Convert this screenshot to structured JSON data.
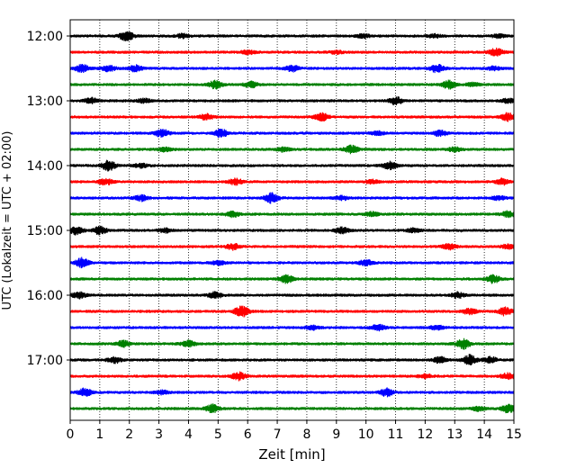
{
  "chart_data": {
    "type": "line",
    "title": "",
    "xlabel": "Zeit  [min]",
    "ylabel": "UTC (Lokalzeit = UTC + 02:00)",
    "xlim": [
      0,
      15
    ],
    "x_ticks": [
      "0",
      "1",
      "2",
      "3",
      "4",
      "5",
      "6",
      "7",
      "8",
      "9",
      "10",
      "11",
      "12",
      "13",
      "14",
      "15"
    ],
    "y_ticks": [
      "12:00",
      "13:00",
      "14:00",
      "15:00",
      "16:00",
      "17:00"
    ],
    "grid": {
      "x": "dotted",
      "y": "none"
    },
    "trace_interval_minutes": 15,
    "start_time": "12:00",
    "trace_colors": [
      "#000000",
      "#ff0000",
      "#0000ff",
      "#008000"
    ],
    "traces": [
      {
        "start": "12:00",
        "events": [
          [
            1.9,
            5
          ],
          [
            3.8,
            2
          ],
          [
            9.9,
            2
          ],
          [
            12.3,
            1.5
          ],
          [
            14.5,
            2
          ]
        ]
      },
      {
        "start": "12:15",
        "events": [
          [
            6.0,
            2
          ],
          [
            9.0,
            1.5
          ],
          [
            14.4,
            4
          ]
        ]
      },
      {
        "start": "12:30",
        "events": [
          [
            0.4,
            4
          ],
          [
            1.3,
            3
          ],
          [
            2.2,
            3
          ],
          [
            7.5,
            3
          ],
          [
            12.4,
            4
          ],
          [
            14.3,
            2
          ]
        ]
      },
      {
        "start": "12:45",
        "events": [
          [
            4.9,
            4
          ],
          [
            6.1,
            3
          ],
          [
            12.8,
            4
          ],
          [
            13.6,
            2
          ]
        ]
      },
      {
        "start": "13:00",
        "events": [
          [
            0.7,
            3
          ],
          [
            2.5,
            2
          ],
          [
            11.0,
            4
          ],
          [
            14.8,
            2
          ]
        ]
      },
      {
        "start": "13:15",
        "events": [
          [
            4.6,
            3
          ],
          [
            8.5,
            4
          ],
          [
            14.8,
            4
          ]
        ]
      },
      {
        "start": "13:30",
        "events": [
          [
            3.1,
            4
          ],
          [
            5.1,
            4
          ],
          [
            10.4,
            2
          ],
          [
            12.5,
            3
          ]
        ]
      },
      {
        "start": "13:45",
        "events": [
          [
            3.2,
            2
          ],
          [
            7.2,
            2
          ],
          [
            9.5,
            4
          ],
          [
            13.0,
            2
          ]
        ]
      },
      {
        "start": "14:00",
        "events": [
          [
            1.3,
            5
          ],
          [
            2.4,
            2
          ],
          [
            10.8,
            4
          ]
        ]
      },
      {
        "start": "14:15",
        "events": [
          [
            1.2,
            3
          ],
          [
            5.6,
            3
          ],
          [
            10.2,
            2
          ],
          [
            14.6,
            3
          ]
        ]
      },
      {
        "start": "14:30",
        "events": [
          [
            2.4,
            3
          ],
          [
            6.8,
            5
          ],
          [
            9.2,
            2
          ],
          [
            14.5,
            2
          ]
        ]
      },
      {
        "start": "14:45",
        "events": [
          [
            5.5,
            3
          ],
          [
            10.2,
            2
          ],
          [
            14.8,
            3
          ]
        ]
      },
      {
        "start": "15:00",
        "events": [
          [
            0.2,
            4
          ],
          [
            1.0,
            4
          ],
          [
            3.2,
            2
          ],
          [
            9.2,
            3
          ],
          [
            11.6,
            2
          ]
        ]
      },
      {
        "start": "15:15",
        "events": [
          [
            5.5,
            3
          ],
          [
            12.8,
            3
          ],
          [
            14.8,
            2
          ]
        ]
      },
      {
        "start": "15:30",
        "events": [
          [
            0.4,
            5
          ],
          [
            5.0,
            2
          ],
          [
            10.0,
            3
          ]
        ]
      },
      {
        "start": "15:45",
        "events": [
          [
            7.3,
            4
          ],
          [
            14.3,
            4
          ]
        ]
      },
      {
        "start": "16:00",
        "events": [
          [
            0.3,
            3
          ],
          [
            4.9,
            3
          ],
          [
            13.1,
            3
          ]
        ]
      },
      {
        "start": "16:15",
        "events": [
          [
            5.8,
            6
          ],
          [
            13.5,
            3
          ],
          [
            14.7,
            4
          ]
        ]
      },
      {
        "start": "16:30",
        "events": [
          [
            8.2,
            2
          ],
          [
            10.4,
            3
          ],
          [
            12.4,
            2
          ]
        ]
      },
      {
        "start": "16:45",
        "events": [
          [
            1.8,
            3
          ],
          [
            4.0,
            3
          ],
          [
            13.3,
            5
          ]
        ]
      },
      {
        "start": "17:00",
        "events": [
          [
            1.5,
            3
          ],
          [
            12.5,
            3
          ],
          [
            13.5,
            5
          ],
          [
            14.2,
            3
          ]
        ]
      },
      {
        "start": "17:15",
        "events": [
          [
            5.7,
            4
          ],
          [
            12.0,
            2
          ],
          [
            14.8,
            3
          ]
        ]
      },
      {
        "start": "17:30",
        "events": [
          [
            0.5,
            4
          ],
          [
            3.1,
            2
          ],
          [
            10.7,
            4
          ]
        ]
      },
      {
        "start": "17:45",
        "events": [
          [
            4.8,
            4
          ],
          [
            13.8,
            2
          ],
          [
            14.8,
            4
          ]
        ]
      }
    ]
  }
}
